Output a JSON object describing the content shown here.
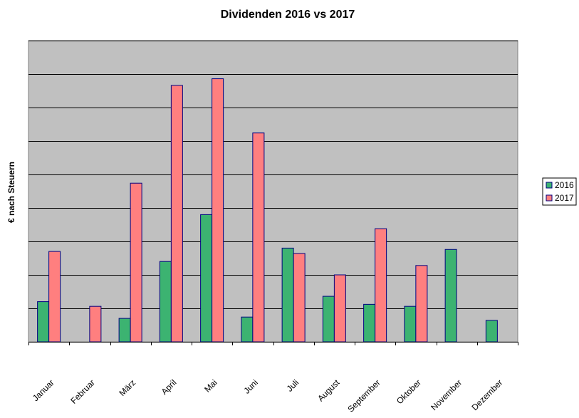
{
  "chart_data": {
    "type": "bar",
    "title": "Dividenden 2016 vs 2017",
    "xlabel": "",
    "ylabel": "€ nach Steuern",
    "categories": [
      "Januar",
      "Februar",
      "März",
      "April",
      "Mai",
      "Juni",
      "Juli",
      "August",
      "September",
      "Oktober",
      "November",
      "Dezember"
    ],
    "series": [
      {
        "name": "2016",
        "color": "#3CB371",
        "values": [
          0.6,
          0,
          0.35,
          1.2,
          1.9,
          0.37,
          1.4,
          0.68,
          0.56,
          0.53,
          1.38,
          0.32
        ]
      },
      {
        "name": "2017",
        "color": "#FF7F7F",
        "values": [
          1.35,
          0.53,
          2.37,
          3.83,
          3.93,
          3.12,
          1.32,
          1.0,
          1.69,
          1.14,
          0,
          0
        ]
      }
    ],
    "ylim": [
      0,
      4.5
    ],
    "gridlines": 9,
    "grid": true,
    "plot_background": "#C0C0C0",
    "legend_position": "right"
  }
}
